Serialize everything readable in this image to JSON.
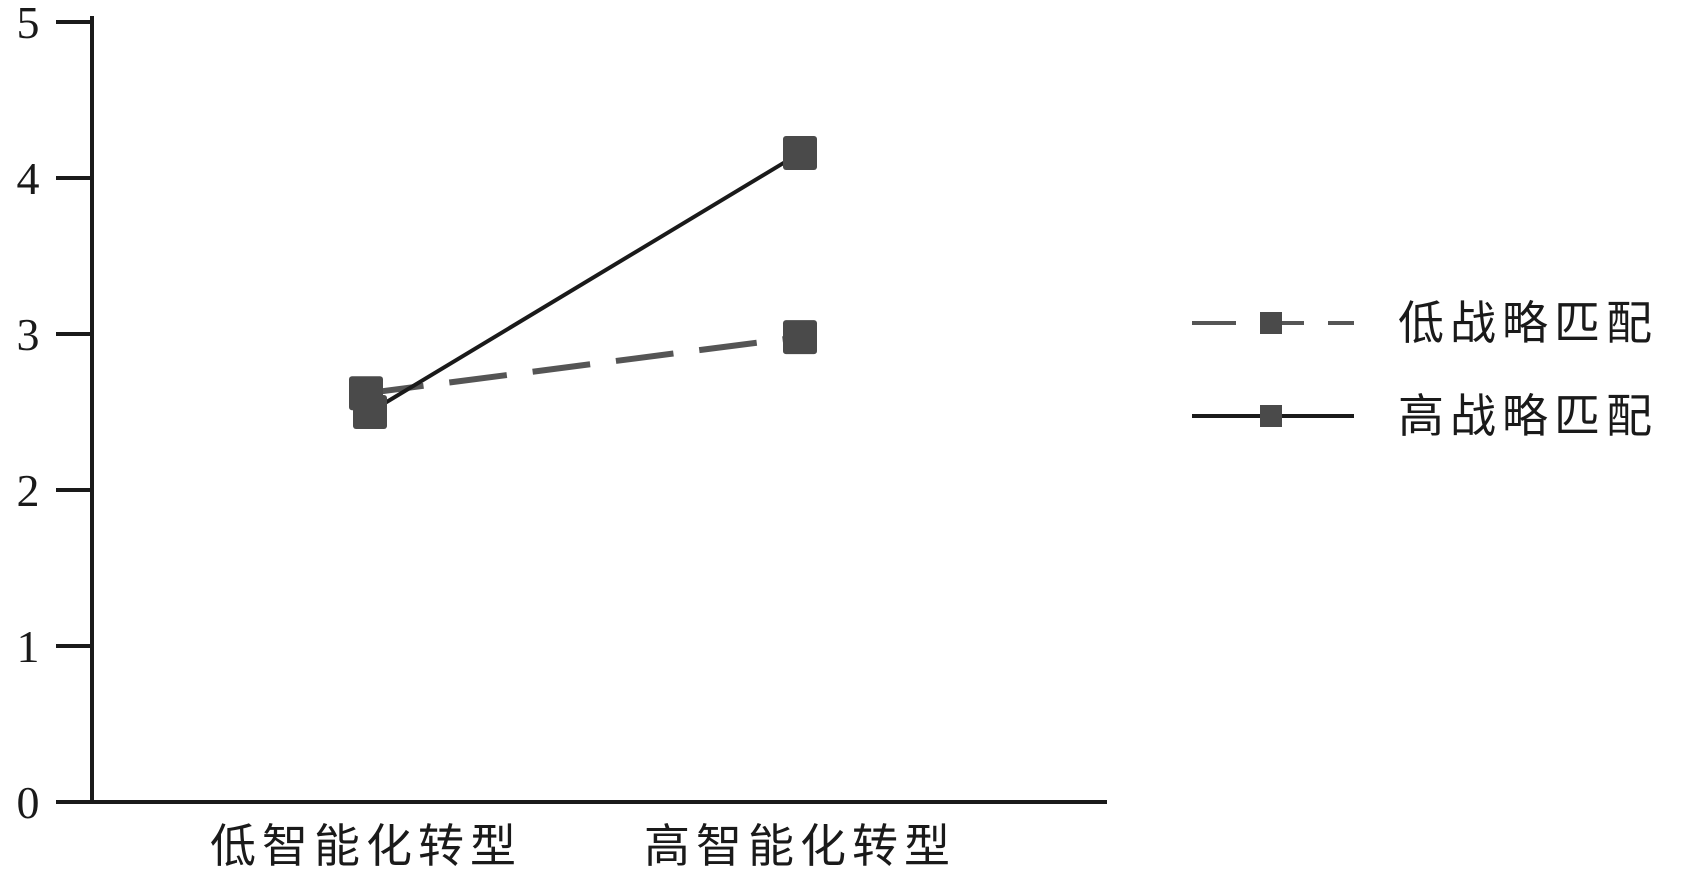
{
  "chart_data": {
    "type": "line",
    "title": "",
    "xlabel": "",
    "ylabel": "",
    "categories": [
      "低智能化转型",
      "高智能化转型"
    ],
    "ylim": [
      0,
      5
    ],
    "yticks": [
      0,
      1,
      2,
      3,
      4,
      5
    ],
    "grid": false,
    "legend_position": "right",
    "series": [
      {
        "name": "低战略匹配",
        "values": [
          2.62,
          2.98
        ],
        "style": "dashed",
        "color": "#555555"
      },
      {
        "name": "高战略匹配",
        "values": [
          2.5,
          4.16
        ],
        "style": "solid",
        "color": "#1a1a1a"
      }
    ],
    "marker_color": "#4a4a4a"
  }
}
